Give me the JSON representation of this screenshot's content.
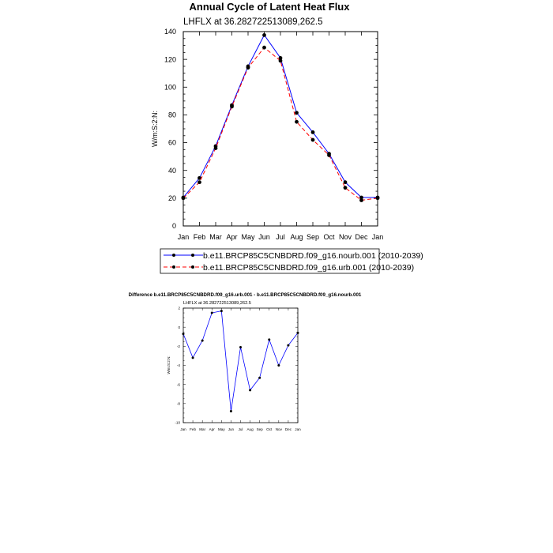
{
  "chart_data": [
    {
      "type": "line",
      "title": "Annual Cycle of Latent Heat Flux",
      "subtitle": "LHFLX at 36.282722513089,262.5",
      "xlabel": "",
      "ylabel": "W/m:S:2:N:",
      "categories": [
        "Jan",
        "Feb",
        "Mar",
        "Apr",
        "May",
        "Jun",
        "Jul",
        "Aug",
        "Sep",
        "Oct",
        "Nov",
        "Dec",
        "Jan"
      ],
      "ylim": [
        0,
        140
      ],
      "yticks": [
        0,
        20,
        40,
        60,
        80,
        100,
        120,
        140
      ],
      "series": [
        {
          "name": "b.e11.BRCP85C5CNBDRD.f09_g16.nourb.001 (2010-2039)",
          "color": "#0000ff",
          "dash": "solid",
          "values": [
            20.5,
            34.5,
            57.5,
            87,
            115,
            137.5,
            121,
            81.5,
            67.5,
            52,
            31.5,
            20.5,
            20.5
          ]
        },
        {
          "name": "b.e11.BRCP85C5CNBDRD.f09_g16.urb.001 (2010-2039)",
          "color": "#ff0000",
          "dash": "dashed",
          "values": [
            20,
            31.5,
            56,
            86,
            114,
            128.5,
            119,
            75,
            62,
            51,
            27.5,
            18.5,
            20
          ]
        }
      ],
      "legend": "bottom"
    },
    {
      "type": "line",
      "title": "Difference b.e11.BRCP85C5CNBDRD.f09_g16.urb.001 - b.e11.BRCP85C5CNBDRD.f09_g16.nourb.001",
      "subtitle": "LHFLX at 36.282722513089,262.5",
      "xlabel": "",
      "ylabel": "W/m:S:2:N:",
      "categories": [
        "Jan",
        "Feb",
        "Mar",
        "Apr",
        "May",
        "Jun",
        "Jul",
        "Aug",
        "Sep",
        "Oct",
        "Nov",
        "Dec",
        "Jan"
      ],
      "ylim": [
        -10,
        2
      ],
      "yticks": [
        -10,
        -8,
        -6,
        -4,
        -2,
        0,
        2
      ],
      "series": [
        {
          "name": "",
          "color": "#0000ff",
          "dash": "solid",
          "values": [
            -0.7,
            -3.2,
            -1.4,
            1.5,
            1.7,
            -8.8,
            -2.1,
            -6.6,
            -5.3,
            -1.3,
            -4.0,
            -1.9,
            -0.6
          ]
        }
      ]
    }
  ]
}
